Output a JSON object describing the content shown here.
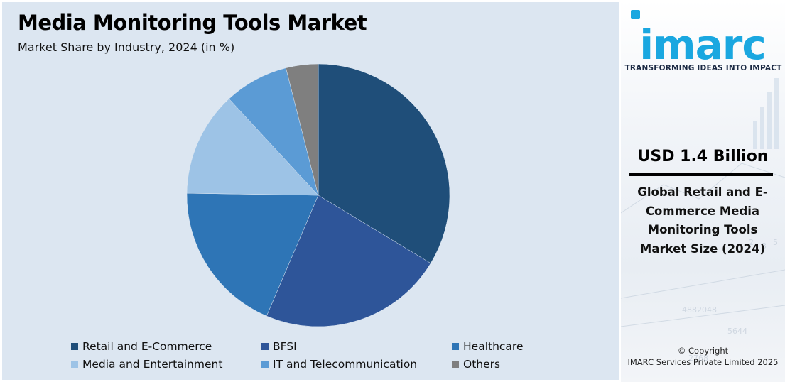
{
  "chart_data": {
    "type": "pie",
    "title": "Media Monitoring Tools Market",
    "subtitle": "Market Share by Industry, 2024 (in %)",
    "categories": [
      "Retail and E-Commerce",
      "BFSI",
      "Healthcare",
      "Media and Entertainment",
      "IT and Telecommunication",
      "Others"
    ],
    "values": [
      34,
      23,
      19,
      13,
      8,
      4
    ],
    "colors": [
      "#1f4e79",
      "#2e5599",
      "#2e75b6",
      "#9dc3e6",
      "#5b9bd5",
      "#7f7f7f"
    ],
    "legend_position": "bottom"
  },
  "side_panel": {
    "logo_text": "imarc",
    "tagline": "TRANSFORMING IDEAS INTO IMPACT",
    "market_value": "USD 1.4 Billion",
    "market_desc": "Global Retail and E-Commerce Media Monitoring Tools Market Size (2024)",
    "copyright_line1": "© Copyright",
    "copyright_line2": "IMARC Services Private Limited 2025"
  }
}
